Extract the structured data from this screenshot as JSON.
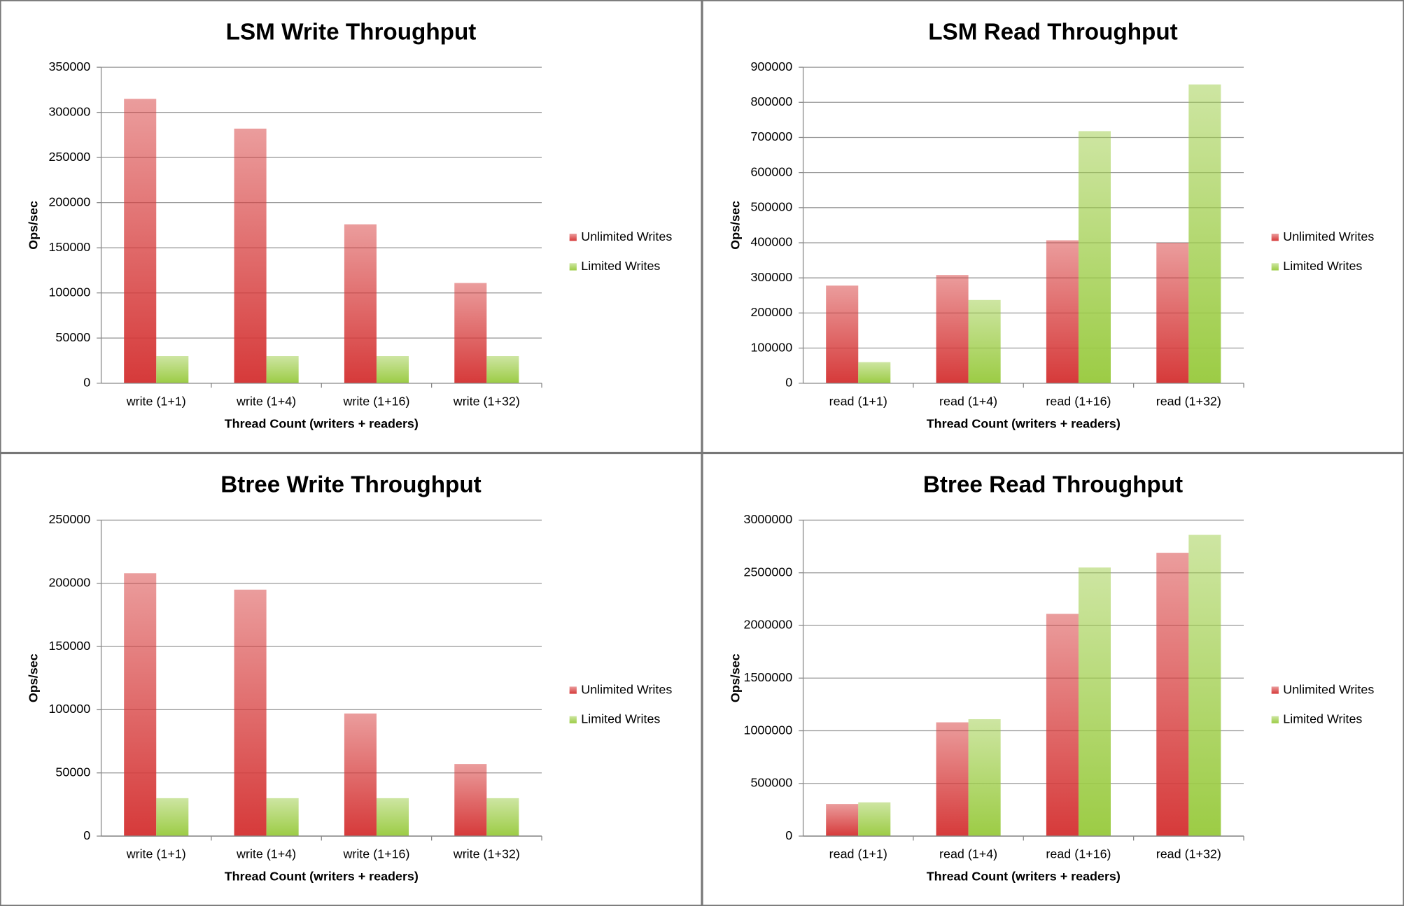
{
  "chart_data": [
    {
      "type": "bar",
      "title": "LSM Write Throughput",
      "x_label": "Thread Count (writers + readers)",
      "y_label": "Ops/sec",
      "categories": [
        "write (1+1)",
        "write (1+4)",
        "write (1+16)",
        "write (1+32)"
      ],
      "series": [
        {
          "name": "Unlimited Writes",
          "color": "#d63a3a",
          "values": [
            315000,
            282000,
            176000,
            111000
          ]
        },
        {
          "name": "Limited Writes",
          "color": "#9ccc45",
          "values": [
            30000,
            30000,
            30000,
            30000
          ]
        }
      ],
      "ylim": [
        0,
        350000
      ],
      "yticks": [
        0,
        50000,
        100000,
        150000,
        200000,
        250000,
        300000,
        350000
      ],
      "grid": true,
      "legend": "right"
    },
    {
      "type": "bar",
      "title": "LSM Read Throughput",
      "x_label": "Thread Count (writers + readers)",
      "y_label": "Ops/sec",
      "categories": [
        "read (1+1)",
        "read (1+4)",
        "read (1+16)",
        "read (1+32)"
      ],
      "series": [
        {
          "name": "Unlimited Writes",
          "color": "#d63a3a",
          "values": [
            278000,
            308000,
            407000,
            400000
          ]
        },
        {
          "name": "Limited Writes",
          "color": "#9ccc45",
          "values": [
            60000,
            237000,
            718000,
            851000
          ]
        }
      ],
      "ylim": [
        0,
        900000
      ],
      "yticks": [
        0,
        100000,
        200000,
        300000,
        400000,
        500000,
        600000,
        700000,
        800000,
        900000
      ],
      "grid": true,
      "legend": "right"
    },
    {
      "type": "bar",
      "title": "Btree Write Throughput",
      "x_label": "Thread Count (writers + readers)",
      "y_label": "Ops/sec",
      "categories": [
        "write (1+1)",
        "write (1+4)",
        "write (1+16)",
        "write (1+32)"
      ],
      "series": [
        {
          "name": "Unlimited Writes",
          "color": "#d63a3a",
          "values": [
            208000,
            195000,
            97000,
            57000
          ]
        },
        {
          "name": "Limited Writes",
          "color": "#9ccc45",
          "values": [
            30000,
            30000,
            30000,
            30000
          ]
        }
      ],
      "ylim": [
        0,
        250000
      ],
      "yticks": [
        0,
        50000,
        100000,
        150000,
        200000,
        250000
      ],
      "grid": true,
      "legend": "right"
    },
    {
      "type": "bar",
      "title": "Btree Read Throughput",
      "x_label": "Thread Count (writers + readers)",
      "y_label": "Ops/sec",
      "categories": [
        "read (1+1)",
        "read (1+4)",
        "read (1+16)",
        "read (1+32)"
      ],
      "series": [
        {
          "name": "Unlimited Writes",
          "color": "#d63a3a",
          "values": [
            305000,
            1080000,
            2110000,
            2690000
          ]
        },
        {
          "name": "Limited Writes",
          "color": "#9ccc45",
          "values": [
            320000,
            1110000,
            2550000,
            2860000
          ]
        }
      ],
      "ylim": [
        0,
        3000000
      ],
      "yticks": [
        0,
        500000,
        1000000,
        1500000,
        2000000,
        2500000,
        3000000
      ],
      "grid": true,
      "legend": "right"
    }
  ]
}
